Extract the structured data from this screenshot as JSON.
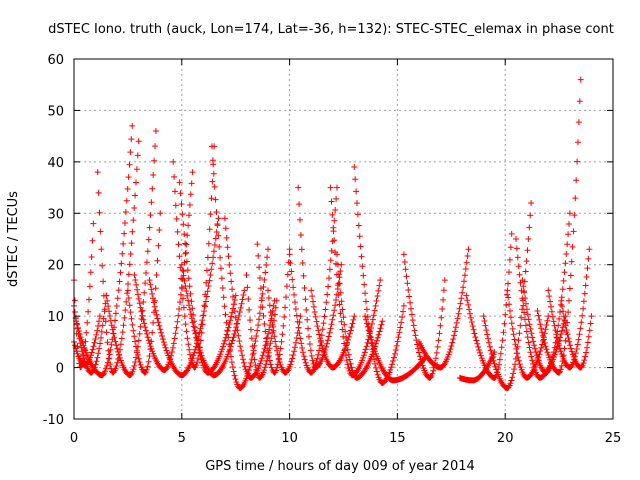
{
  "chart_data": {
    "type": "scatter",
    "title": "dSTEC Iono. truth (auck, Lon=174, Lat=-36, h=132): STEC-STEC_elemax in phase cont",
    "xlabel": "GPS time / hours of day 009 of year 2014",
    "ylabel": "dSTEC  / TECUs",
    "xlim": [
      0,
      25
    ],
    "ylim": [
      -10,
      60
    ],
    "xticks": [
      0,
      5,
      10,
      15,
      20,
      25
    ],
    "yticks": [
      -10,
      0,
      10,
      20,
      30,
      40,
      50,
      60
    ],
    "grid": true,
    "legend": "none",
    "marker": "plus",
    "color": "#ff0000",
    "arcs": [
      {
        "t0": 0.0,
        "tmin": 0.3,
        "t1": 0.9,
        "ymin": 0.0,
        "y0": 17,
        "y1": 28
      },
      {
        "t0": 0.0,
        "tmin": 0.8,
        "t1": 1.5,
        "ymin": -1.0,
        "y0": 12,
        "y1": 14
      },
      {
        "t0": 0.1,
        "tmin": 1.3,
        "t1": 2.7,
        "ymin": -1.5,
        "y0": 9,
        "y1": 47
      },
      {
        "t0": 0.0,
        "tmin": 0.5,
        "t1": 1.2,
        "ymin": 0.5,
        "y0": 5,
        "y1": 10
      },
      {
        "t0": 1.1,
        "tmin": 1.8,
        "t1": 3.0,
        "ymin": -1.0,
        "y0": 38,
        "y1": 44
      },
      {
        "t0": 1.5,
        "tmin": 2.6,
        "t1": 3.8,
        "ymin": -1.5,
        "y0": 14,
        "y1": 46
      },
      {
        "t0": 2.5,
        "tmin": 3.3,
        "t1": 4.0,
        "ymin": -1.0,
        "y0": 15,
        "y1": 30
      },
      {
        "t0": 2.8,
        "tmin": 4.2,
        "t1": 5.5,
        "ymin": -0.5,
        "y0": 18,
        "y1": 38
      },
      {
        "t0": 3.5,
        "tmin": 5.0,
        "t1": 6.7,
        "ymin": -1.5,
        "y0": 17,
        "y1": 29
      },
      {
        "t0": 4.6,
        "tmin": 5.6,
        "t1": 6.5,
        "ymin": 0.0,
        "y0": 40,
        "y1": 43
      },
      {
        "t0": 4.9,
        "tmin": 6.2,
        "t1": 7.5,
        "ymin": -1.0,
        "y0": 36,
        "y1": 14
      },
      {
        "t0": 5.0,
        "tmin": 6.5,
        "t1": 7.9,
        "ymin": -1.5,
        "y0": 20,
        "y1": 15
      },
      {
        "t0": 6.4,
        "tmin": 7.7,
        "t1": 9.0,
        "ymin": -4.0,
        "y0": 43,
        "y1": 23
      },
      {
        "t0": 7.0,
        "tmin": 8.2,
        "t1": 9.3,
        "ymin": -2.0,
        "y0": 29,
        "y1": 13
      },
      {
        "t0": 8.0,
        "tmin": 8.6,
        "t1": 9.4,
        "ymin": -2.0,
        "y0": 18,
        "y1": 13
      },
      {
        "t0": 8.5,
        "tmin": 9.3,
        "t1": 10.0,
        "ymin": -1.0,
        "y0": 24,
        "y1": 23
      },
      {
        "t0": 9.0,
        "tmin": 9.8,
        "t1": 10.5,
        "ymin": -1.0,
        "y0": 15,
        "y1": 10
      },
      {
        "t0": 10.0,
        "tmin": 11.0,
        "t1": 12.2,
        "ymin": -1.0,
        "y0": 22,
        "y1": 35
      },
      {
        "t0": 10.4,
        "tmin": 11.2,
        "t1": 12.4,
        "ymin": 0.0,
        "y0": 35,
        "y1": 20
      },
      {
        "t0": 11.0,
        "tmin": 12.0,
        "t1": 13.0,
        "ymin": 0.0,
        "y0": 15,
        "y1": 10
      },
      {
        "t0": 11.9,
        "tmin": 12.9,
        "t1": 14.2,
        "ymin": -1.5,
        "y0": 35,
        "y1": 17
      },
      {
        "t0": 12.2,
        "tmin": 13.1,
        "t1": 14.3,
        "ymin": -2.0,
        "y0": 22,
        "y1": 9
      },
      {
        "t0": 13.0,
        "tmin": 14.3,
        "t1": 15.3,
        "ymin": -3.0,
        "y0": 39,
        "y1": 12
      },
      {
        "t0": 13.5,
        "tmin": 14.8,
        "t1": 16.3,
        "ymin": -2.5,
        "y0": 10,
        "y1": 2
      },
      {
        "t0": 15.3,
        "tmin": 16.5,
        "t1": 17.2,
        "ymin": -2.0,
        "y0": 22,
        "y1": 17
      },
      {
        "t0": 16.0,
        "tmin": 17.0,
        "t1": 18.3,
        "ymin": 0.0,
        "y0": 5,
        "y1": 23
      },
      {
        "t0": 17.9,
        "tmin": 18.5,
        "t1": 19.5,
        "ymin": -2.5,
        "y0": -2,
        "y1": 3
      },
      {
        "t0": 18.2,
        "tmin": 19.5,
        "t1": 20.3,
        "ymin": -2.0,
        "y0": 14,
        "y1": 26
      },
      {
        "t0": 19.0,
        "tmin": 20.1,
        "t1": 21.2,
        "ymin": -4.0,
        "y0": 10,
        "y1": 32
      },
      {
        "t0": 20.1,
        "tmin": 21.0,
        "t1": 22.0,
        "ymin": -2.0,
        "y0": 15,
        "y1": 10
      },
      {
        "t0": 20.5,
        "tmin": 21.6,
        "t1": 22.8,
        "ymin": -2.0,
        "y0": 25,
        "y1": 10
      },
      {
        "t0": 20.8,
        "tmin": 21.9,
        "t1": 23.0,
        "ymin": -1.0,
        "y0": 17,
        "y1": 30
      },
      {
        "t0": 21.5,
        "tmin": 22.5,
        "t1": 23.5,
        "ymin": -1.0,
        "y0": 11,
        "y1": 56
      },
      {
        "t0": 22.0,
        "tmin": 23.0,
        "t1": 23.9,
        "ymin": 0.0,
        "y0": 15,
        "y1": 23
      },
      {
        "t0": 22.6,
        "tmin": 23.5,
        "t1": 24.0,
        "ymin": 0.0,
        "y0": 13,
        "y1": 10
      }
    ]
  }
}
